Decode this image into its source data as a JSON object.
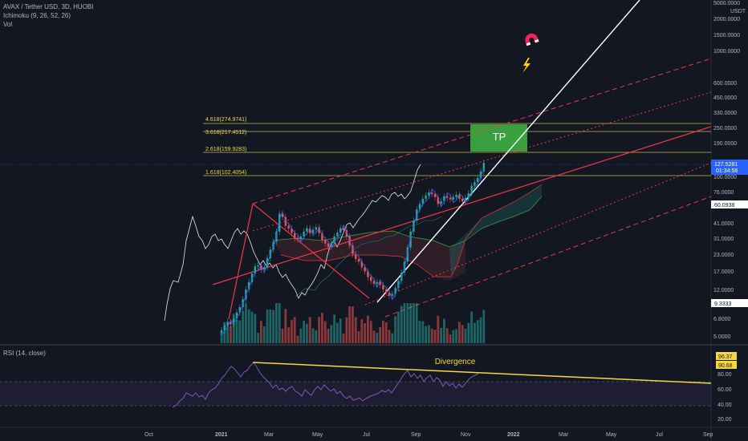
{
  "header": {
    "symbol": "AVAX / Tether USD, 3D, HUOBI",
    "indicator": "Ichimoku (9, 26, 52, 26)",
    "volume": "Vol"
  },
  "rsi": {
    "label": "RSI (14, close)",
    "levels": [
      "80.00",
      "60.00",
      "40.00",
      "20.00"
    ],
    "value_tags": [
      "96.37",
      "90.68"
    ],
    "divergence_label": "Divergence",
    "band": [
      30,
      70
    ]
  },
  "price_axis": {
    "currency": "USDT",
    "ticks": [
      "5000.0000",
      "2000.0000",
      "1500.0000",
      "1000.0000",
      "600.0000",
      "450.0000",
      "330.0000",
      "250.0000",
      "190.0000",
      "100.0000",
      "76.0000",
      "41.0000",
      "31.0000",
      "23.0000",
      "17.0000",
      "12.0000",
      "6.8000",
      "5.0000"
    ],
    "last_price": "127.5281",
    "countdown": "01:34:58",
    "tag_2": "60.0938",
    "tag_3": "9.3333"
  },
  "time_axis": {
    "labels": [
      "Oct",
      "2021",
      "Mar",
      "May",
      "Jul",
      "Sep",
      "Nov",
      "2022",
      "Mar",
      "May",
      "Jul",
      "Sep"
    ]
  },
  "fib_levels": [
    {
      "label": "4.618(274.9741)",
      "price": 274.9741
    },
    {
      "label": "3.618(217.4512)",
      "price": 217.4512
    },
    {
      "label": "2.618(159.9283)",
      "price": 159.9283
    },
    {
      "label": "1.618(102.4054)",
      "price": 102.4054
    }
  ],
  "tp_label": "TP",
  "colors": {
    "background": "#131722",
    "up": "#26a69a",
    "down": "#ef5350",
    "channel": "#f23645",
    "fib": "#c9b94a",
    "tp_box": "#3aa03f",
    "trend": "#ffffff",
    "rsi_line": "#7e57c2",
    "divergence": "#f5d742",
    "last_price_tag": "#2962ff",
    "magnet": "#f0245a",
    "lightning": "#ffd600"
  },
  "icons": [
    "magnet-icon",
    "lightning-icon"
  ],
  "chart_data": {
    "type": "candlestick",
    "title": "AVAX / Tether USD, 3D, HUOBI",
    "scale": "log",
    "ylim": [
      5,
      5000
    ],
    "xlabels": [
      "Oct",
      "2021",
      "Mar",
      "May",
      "Jul",
      "Sep",
      "Nov",
      "2022",
      "Mar",
      "May",
      "Jul",
      "Sep"
    ],
    "close": [
      5.3,
      5.8,
      6.2,
      5.9,
      6.6,
      7.4,
      8.2,
      9.5,
      11.5,
      13.2,
      15.5,
      17.8,
      18.2,
      16.8,
      17.5,
      20.8,
      24.5,
      28.5,
      34.5,
      48.5,
      45.5,
      38.5,
      36.5,
      33.5,
      30.5,
      29.8,
      31.5,
      34.5,
      36.8,
      33.5,
      35.8,
      37.5,
      33.5,
      29.5,
      27.5,
      25.8,
      27.8,
      31.5,
      33.8,
      36.8,
      35.5,
      31.5,
      26.5,
      22.5,
      20.5,
      19.5,
      17.5,
      16.2,
      14.5,
      13.5,
      12.8,
      13.2,
      12.5,
      11.5,
      10.8,
      10.2,
      10.5,
      11.8,
      13.5,
      15.8,
      19.5,
      25.5,
      34.5,
      42.5,
      52.5,
      58.5,
      64.5,
      68.5,
      72.5,
      70.5,
      66.5,
      58.5,
      61.5,
      67.5,
      65.5,
      63.5,
      66.5,
      69.5,
      64.5,
      61.5,
      65.5,
      71.5,
      82.5,
      88.5,
      95.5,
      108.5,
      127.5
    ]
  }
}
